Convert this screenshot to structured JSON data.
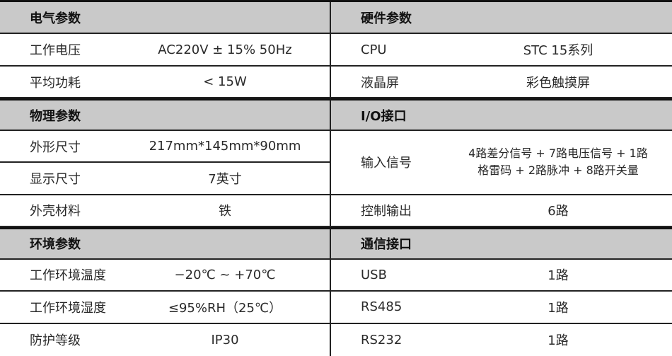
{
  "left": [
    {
      "header": "电气参数"
    },
    {
      "label": "工作电压",
      "value": "AC220V ± 15% 50Hz"
    },
    {
      "label": "平均功耗",
      "value": "< 15W"
    },
    {
      "header": "物理参数"
    },
    {
      "label": "外形尺寸",
      "value": "217mm*145mm*90mm"
    },
    {
      "label": "显示尺寸",
      "value": "7英寸"
    },
    {
      "label": "外壳材料",
      "value": "铁"
    },
    {
      "header": "环境参数"
    },
    {
      "label": "工作环境温度",
      "value": "−20℃ ~ +70℃"
    },
    {
      "label": "工作环境湿度",
      "value": "≤95%RH（25℃）"
    },
    {
      "label": "防护等级",
      "value": "IP30"
    }
  ],
  "right": [
    {
      "header": "硬件参数"
    },
    {
      "label": "CPU",
      "value": "STC 15系列"
    },
    {
      "label": "液晶屏",
      "value": "彩色触摸屏"
    },
    {
      "header": "I/O接口"
    },
    {
      "label": "输入信号",
      "value_line1": "4路差分信号 + 7路电压信号 + 1路",
      "value_line2": "格雷码 + 2路脉冲 + 8路开关量"
    },
    {
      "label": "控制输出",
      "value": "6路"
    },
    {
      "header": "通信接口"
    },
    {
      "label": "USB",
      "value": "1路"
    },
    {
      "label": "RS485",
      "value": "1路"
    },
    {
      "label": "RS232",
      "value": "1路"
    }
  ]
}
